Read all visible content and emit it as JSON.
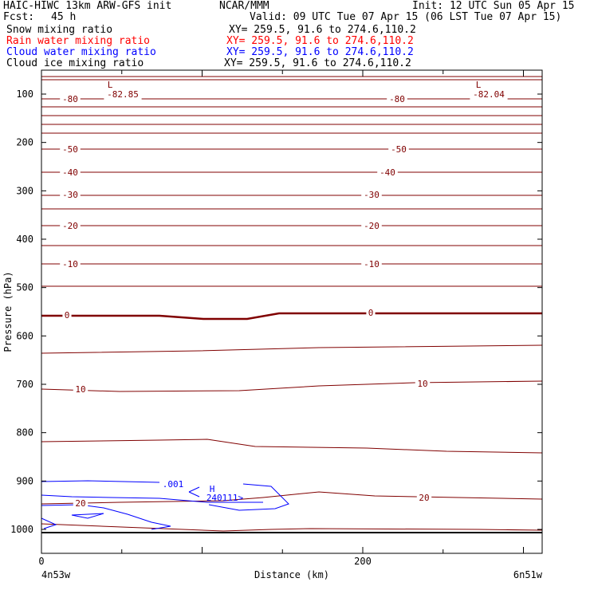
{
  "header": {
    "model": "HAIC-HIWC 13km ARW-GFS init",
    "org": "NCAR/MMM",
    "init": "Init: 12 UTC Sun 05 Apr 15",
    "fcst_label": "Fcst:",
    "fcst_value": "45 h",
    "valid": "Valid: 09 UTC Tue 07 Apr 15 (06 LST Tue 07 Apr 15)"
  },
  "fields": [
    {
      "name": "Snow mixing ratio",
      "xy": "XY= 259.5, 91.6 to 274.6,110.2",
      "color": "#000000"
    },
    {
      "name": "Rain water mixing ratio",
      "xy": "XY= 259.5, 91.6 to 274.6,110.2",
      "color": "#ff0000"
    },
    {
      "name": "Cloud water mixing ratio",
      "xy": "XY= 259.5, 91.6 to 274.6,110.2",
      "color": "#0000ff"
    },
    {
      "name": "Cloud ice mixing ratio",
      "xy": "XY= 259.5, 91.6 to 274.6,110.2",
      "color": "#000000"
    }
  ],
  "chart_data": {
    "type": "cross-section contour",
    "xlabel": "Distance (km)",
    "ylabel": "Pressure (hPa)",
    "x_ticks": [
      "0",
      "200"
    ],
    "x_left_label": "4n53w",
    "x_right_label": "6n51w",
    "y_ticks": [
      "100",
      "200",
      "300",
      "400",
      "500",
      "600",
      "700",
      "800",
      "900",
      "1000"
    ],
    "xlim": [
      0,
      310
    ],
    "temperature_labels": {
      "values": [
        "-80",
        "-82.85",
        "-80",
        "-82.04",
        "-50",
        "-50",
        "-40",
        "-40",
        "-30",
        "-30",
        "-20",
        "-20",
        "-10",
        "-10",
        "0",
        "0",
        "10",
        "10",
        "20",
        "20"
      ],
      "low_marks": [
        "L",
        "L"
      ],
      "color": "#800000"
    },
    "cloud_water": {
      "contour_label": ".001",
      "high_mark": "H",
      "max_value": "240111",
      "color": "#0000ff"
    }
  }
}
